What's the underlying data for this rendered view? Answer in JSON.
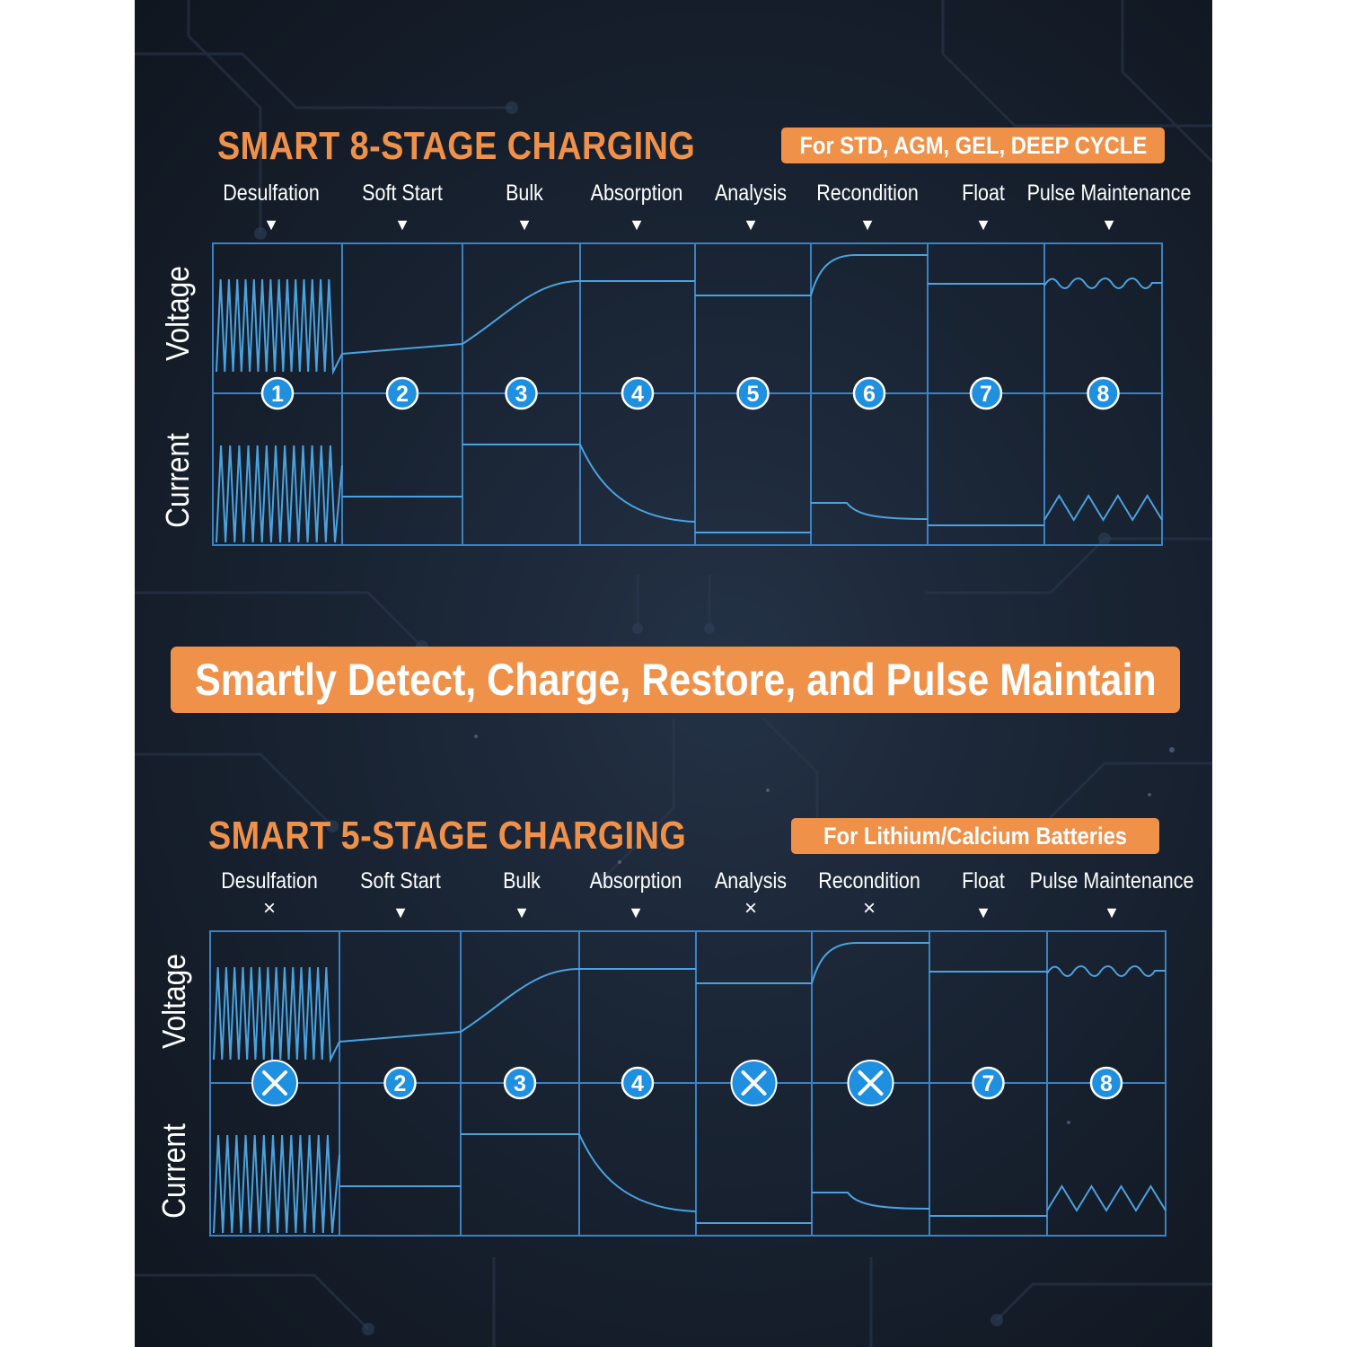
{
  "colors": {
    "accent": "#f0914a",
    "line": "#3a82c4",
    "wave": "#4aa3df",
    "badge_circle": "#1f8fe0"
  },
  "sections": [
    {
      "title": "SMART 8-STAGE CHARGING",
      "badge": "For STD, AGM, GEL, DEEP CYCLE",
      "axis_top": "Voltage",
      "axis_bottom": "Current",
      "stages": [
        {
          "label": "Desulfation",
          "marker": "▼",
          "badge": "1",
          "active": true
        },
        {
          "label": "Soft Start",
          "marker": "▼",
          "badge": "2",
          "active": true
        },
        {
          "label": "Bulk",
          "marker": "▼",
          "badge": "3",
          "active": true
        },
        {
          "label": "Absorption",
          "marker": "▼",
          "badge": "4",
          "active": true
        },
        {
          "label": "Analysis",
          "marker": "▼",
          "badge": "5",
          "active": true
        },
        {
          "label": "Recondition",
          "marker": "▼",
          "badge": "6",
          "active": true
        },
        {
          "label": "Float",
          "marker": "▼",
          "badge": "7",
          "active": true
        },
        {
          "label": "Pulse Maintenance",
          "marker": "▼",
          "badge": "8",
          "active": true
        }
      ]
    },
    {
      "title": "SMART 5-STAGE CHARGING",
      "badge": "For Lithium/Calcium Batteries",
      "axis_top": "Voltage",
      "axis_bottom": "Current",
      "stages": [
        {
          "label": "Desulfation",
          "marker": "×",
          "badge": "",
          "active": false
        },
        {
          "label": "Soft Start",
          "marker": "▼",
          "badge": "2",
          "active": true
        },
        {
          "label": "Bulk",
          "marker": "▼",
          "badge": "3",
          "active": true
        },
        {
          "label": "Absorption",
          "marker": "▼",
          "badge": "4",
          "active": true
        },
        {
          "label": "Analysis",
          "marker": "×",
          "badge": "",
          "active": false
        },
        {
          "label": "Recondition",
          "marker": "×",
          "badge": "",
          "active": false
        },
        {
          "label": "Float",
          "marker": "▼",
          "badge": "7",
          "active": true
        },
        {
          "label": "Pulse Maintenance",
          "marker": "▼",
          "badge": "8",
          "active": true
        }
      ]
    }
  ],
  "banner": "Smartly Detect, Charge, Restore, and Pulse Maintain"
}
